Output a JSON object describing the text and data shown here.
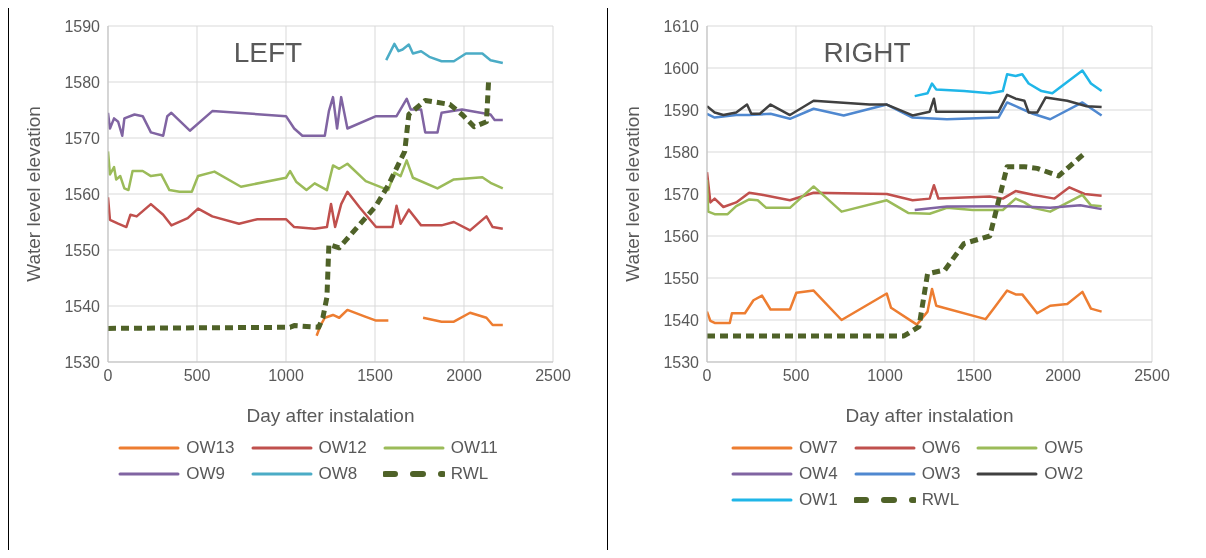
{
  "chart_data": [
    {
      "type": "line",
      "title": "LEFT",
      "xlabel": "Day after instalation",
      "ylabel": "Water level elevation",
      "xlim": [
        0,
        2500
      ],
      "xticks": [
        0,
        500,
        1000,
        1500,
        2000,
        2500
      ],
      "ylim": [
        1530,
        1590
      ],
      "yticks": [
        1530,
        1540,
        1550,
        1560,
        1570,
        1580,
        1590
      ],
      "grid": true,
      "legend": "bottom",
      "marker": "none",
      "series": [
        {
          "name": "OW13",
          "color": "#ed7d31",
          "x": [
            1172,
            1195,
            1218,
            1264,
            1299,
            1345,
            1437,
            1506,
            1575,
            1670,
            1770,
            1874,
            1943,
            2034,
            2126,
            2161,
            2218
          ],
          "values": [
            1534.7,
            1536.6,
            1537.9,
            1538.4,
            1537.9,
            1539.3,
            1538.2,
            1537.4,
            1537.4,
            null,
            1537.9,
            1537.2,
            1537.2,
            1538.8,
            1537.9,
            1536.6,
            1536.6
          ]
        },
        {
          "name": "OW12",
          "color": "#c0504d",
          "x": [
            0,
            11,
            57,
            103,
            126,
            161,
            241,
            310,
            356,
            448,
            506,
            586,
            736,
            839,
            1000,
            1046,
            1161,
            1230,
            1253,
            1276,
            1310,
            1345,
            1414,
            1506,
            1598,
            1621,
            1644,
            1690,
            1759,
            1874,
            1943,
            2034,
            2126,
            2161,
            2218
          ],
          "values": [
            1559.4,
            1555.4,
            1554.7,
            1554.1,
            1556.3,
            1556,
            1558.2,
            1556.3,
            1554.4,
            1555.7,
            1557.4,
            1556,
            1554.7,
            1555.5,
            1555.5,
            1554.1,
            1553.8,
            1554.1,
            1558.2,
            1554.1,
            1558.2,
            1560.4,
            1557.6,
            1554.1,
            1554.1,
            1557.9,
            1554.7,
            1557.2,
            1554.4,
            1554.4,
            1555,
            1553.5,
            1556,
            1554.1,
            1553.8
          ]
        },
        {
          "name": "OW11",
          "color": "#9bbb59",
          "x": [
            0,
            11,
            34,
            46,
            69,
            92,
            115,
            138,
            195,
            241,
            299,
            345,
            402,
            471,
            506,
            598,
            747,
            1000,
            1023,
            1057,
            1115,
            1161,
            1230,
            1264,
            1299,
            1345,
            1448,
            1575,
            1609,
            1644,
            1678,
            1713,
            1851,
            1943,
            2103,
            2149,
            2218
          ],
          "values": [
            1567.6,
            1563.5,
            1564.8,
            1562.6,
            1563.2,
            1561,
            1560.7,
            1564.1,
            1564.1,
            1563.2,
            1563.5,
            1560.7,
            1560.4,
            1560.4,
            1563.2,
            1564,
            1561.3,
            1562.9,
            1564.1,
            1562.2,
            1560.7,
            1561.9,
            1560.7,
            1565.1,
            1564.5,
            1565.4,
            1562.3,
            1560.7,
            1563.8,
            1563.2,
            1566,
            1562.9,
            1561,
            1562.6,
            1563,
            1562,
            1561
          ]
        },
        {
          "name": "OW9",
          "color": "#8064a2",
          "x": [
            0,
            11,
            34,
            57,
            80,
            92,
            149,
            195,
            241,
            310,
            333,
            356,
            460,
            586,
            1000,
            1046,
            1092,
            1218,
            1241,
            1264,
            1287,
            1310,
            1345,
            1506,
            1621,
            1678,
            1701,
            1759,
            1782,
            1851,
            1874,
            1989,
            2149,
            2172,
            2218
          ],
          "values": [
            1574.5,
            1571.7,
            1573.5,
            1572.9,
            1570.4,
            1573.5,
            1574.2,
            1573.9,
            1571,
            1570.4,
            1573.9,
            1574.5,
            1571.3,
            1574.8,
            1573.9,
            1571.7,
            1570.4,
            1570.4,
            1574.8,
            1577.3,
            1571.7,
            1577.3,
            1571.7,
            1573.9,
            1573.9,
            1577,
            1575.1,
            1575.1,
            1571,
            1571,
            1574.5,
            1575.1,
            1574.2,
            1573.2,
            1573.2
          ]
        },
        {
          "name": "OW8",
          "color": "#4bacc6",
          "x": [
            1563,
            1609,
            1632,
            1655,
            1690,
            1713,
            1759,
            1805,
            1874,
            1943,
            2011,
            2103,
            2149,
            2218
          ],
          "values": [
            1583.9,
            1586.8,
            1585.5,
            1585.8,
            1586.7,
            1585.1,
            1585.5,
            1584.5,
            1583.7,
            1583.7,
            1585.1,
            1585.1,
            1583.9,
            1583.4
          ]
        },
        {
          "name": "RWL",
          "color": "#4f6228",
          "line_style": "dashed",
          "x": [
            0,
            1023,
            1046,
            1184,
            1207,
            1230,
            1241,
            1299,
            1368,
            1506,
            1575,
            1667,
            1690,
            1782,
            1920,
            1989,
            2057,
            2126,
            2138
          ],
          "values": [
            1536,
            1536.2,
            1536.5,
            1536.2,
            1537.9,
            1541.6,
            1551,
            1550.4,
            1552.9,
            1557.9,
            1561.6,
            1567.6,
            1574.2,
            1576.7,
            1576,
            1574.2,
            1572,
            1572.9,
            1580.1
          ]
        }
      ]
    },
    {
      "type": "line",
      "title": "RIGHT",
      "xlabel": "Day after instalation",
      "ylabel": "Water level elevation",
      "xlim": [
        0,
        2500
      ],
      "xticks": [
        0,
        500,
        1000,
        1500,
        2000,
        2500
      ],
      "ylim": [
        1530,
        1610
      ],
      "yticks": [
        1530,
        1540,
        1550,
        1560,
        1570,
        1580,
        1590,
        1600,
        1610
      ],
      "grid": true,
      "legend": "bottom",
      "marker": "none",
      "series": [
        {
          "name": "OW7",
          "color": "#ed7d31",
          "x": [
            0,
            19,
            43,
            128,
            140,
            213,
            261,
            309,
            357,
            466,
            502,
            599,
            756,
            1010,
            1034,
            1179,
            1239,
            1264,
            1288,
            1565,
            1614,
            1686,
            1734,
            1771,
            1855,
            1928,
            2024,
            2109,
            2157,
            2217
          ],
          "values": [
            1542,
            1539.8,
            1539.3,
            1539.3,
            1541.6,
            1541.6,
            1544.7,
            1545.8,
            1542.5,
            1542.5,
            1546.5,
            1547,
            1540,
            1546.3,
            1542.9,
            1538.9,
            1542,
            1547.4,
            1543.4,
            1540.2,
            1542.9,
            1547,
            1546.1,
            1546.1,
            1541.6,
            1543.4,
            1543.8,
            1546.7,
            1542.7,
            1542
          ]
        },
        {
          "name": "OW6",
          "color": "#c0504d",
          "x": [
            0,
            19,
            43,
            92,
            164,
            237,
            309,
            466,
            599,
            1010,
            1155,
            1251,
            1275,
            1300,
            1589,
            1662,
            1734,
            1831,
            1952,
            2036,
            2121,
            2217
          ],
          "values": [
            1575.2,
            1568,
            1568.9,
            1566.9,
            1568,
            1570.3,
            1569.8,
            1568.5,
            1570.3,
            1570,
            1568.5,
            1568.9,
            1572.1,
            1568.9,
            1569.4,
            1568.9,
            1570.7,
            1569.8,
            1568.9,
            1571.6,
            1570,
            1569.6
          ]
        },
        {
          "name": "OW5",
          "color": "#9bbb59",
          "x": [
            0,
            7,
            43,
            116,
            164,
            237,
            285,
            333,
            466,
            599,
            756,
            1010,
            1130,
            1251,
            1348,
            1493,
            1662,
            1734,
            1783,
            1831,
            1928,
            2109,
            2157,
            2217
          ],
          "values": [
            1573.4,
            1565.8,
            1565.2,
            1565.2,
            1567.1,
            1568.7,
            1568.5,
            1566.7,
            1566.7,
            1571.8,
            1565.8,
            1568.5,
            1565.5,
            1565.3,
            1566.7,
            1566.2,
            1566.2,
            1568.9,
            1568,
            1566.7,
            1565.8,
            1569.8,
            1567.3,
            1567.1
          ]
        },
        {
          "name": "OW4",
          "color": "#8064a2",
          "x": [
            1167,
            1348,
            1734,
            1928,
            2097,
            2217
          ],
          "values": [
            1566.2,
            1567,
            1567.1,
            1566.7,
            1567.3,
            1566.4
          ]
        },
        {
          "name": "OW3",
          "color": "#4f88d0",
          "x": [
            0,
            43,
            164,
            237,
            357,
            466,
            599,
            768,
            1010,
            1155,
            1348,
            1638,
            1686,
            1734,
            1831,
            1928,
            2109,
            2217
          ],
          "values": [
            1589.1,
            1588.2,
            1588.8,
            1588.8,
            1589.1,
            1587.9,
            1590.3,
            1588.7,
            1591.3,
            1588.2,
            1587.8,
            1588.2,
            1591.8,
            1590.9,
            1589.1,
            1587.8,
            1591.8,
            1588.7
          ]
        },
        {
          "name": "OW2",
          "color": "#404040",
          "x": [
            0,
            43,
            92,
            164,
            225,
            249,
            297,
            357,
            466,
            599,
            913,
            1010,
            1155,
            1251,
            1275,
            1288,
            1638,
            1686,
            1734,
            1783,
            1807,
            1855,
            1903,
            2024,
            2133,
            2217
          ],
          "values": [
            1590.9,
            1589.4,
            1588.8,
            1589.4,
            1591.3,
            1589.1,
            1589.1,
            1591.3,
            1588.8,
            1592.2,
            1591.3,
            1591.3,
            1588.7,
            1589.6,
            1592.7,
            1589.6,
            1589.6,
            1593.6,
            1592.7,
            1592.2,
            1589.4,
            1589.4,
            1593,
            1592.2,
            1590.9,
            1590.7
          ]
        },
        {
          "name": "OW1",
          "color": "#1fb6e8",
          "x": [
            1167,
            1239,
            1264,
            1288,
            1444,
            1589,
            1662,
            1686,
            1734,
            1771,
            1807,
            1879,
            1940,
            2109,
            2157,
            2217
          ],
          "values": [
            1593.3,
            1594,
            1596.3,
            1594.9,
            1594.5,
            1594,
            1594.5,
            1598.5,
            1598.1,
            1598.5,
            1596.3,
            1594.5,
            1594,
            1599.4,
            1596.3,
            1594.5
          ]
        },
        {
          "name": "RWL",
          "color": "#4f6228",
          "line_style": "dashed",
          "x": [
            0,
            1106,
            1191,
            1239,
            1336,
            1444,
            1589,
            1686,
            1783,
            1855,
            1976,
            2121
          ],
          "values": [
            1536.2,
            1536.2,
            1538.4,
            1551,
            1551.9,
            1558.2,
            1560,
            1576.5,
            1576.5,
            1576.1,
            1574.3,
            1579.7
          ]
        }
      ]
    }
  ]
}
